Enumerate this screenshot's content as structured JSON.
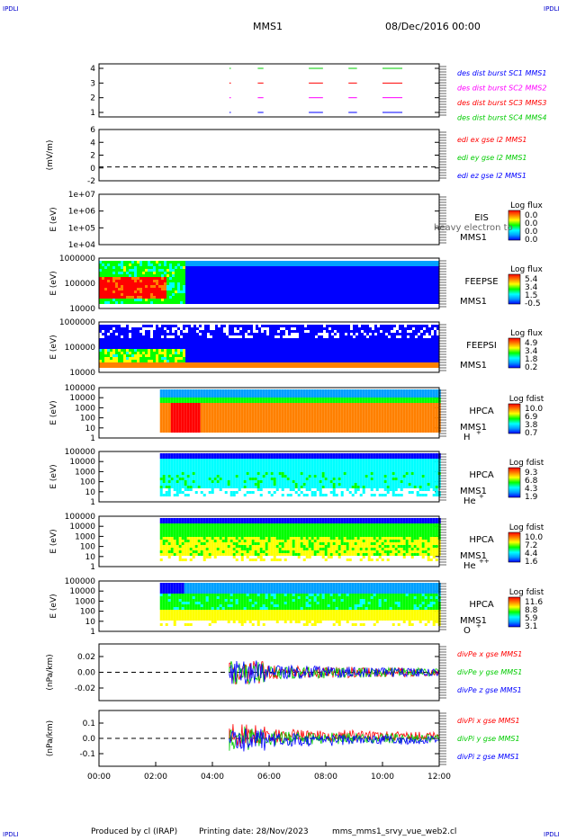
{
  "header": {
    "corner_label": "IPDLI",
    "spacecraft": "MMS1",
    "date": "08/Dec/2016 00:00"
  },
  "footer": {
    "producer": "Produced by cl (IRAP)",
    "printing": "Printing date: 28/Nov/2023",
    "file": "mms_mms1_srvy_vue_web2.cl"
  },
  "colors": {
    "blue": "#0000ff",
    "magenta": "#ff00ff",
    "red": "#ff0000",
    "green": "#00cc00",
    "bar_gradient": [
      "#0000ff",
      "#00a0ff",
      "#00ffff",
      "#00ff00",
      "#ffff00",
      "#ff8000",
      "#ff0000"
    ]
  },
  "chart_data": {
    "type": "heatmap",
    "x_ticks": [
      "00:00",
      "02:00",
      "04:00",
      "06:00",
      "08:00",
      "10:00",
      "12:00"
    ],
    "xlim_hours": [
      0,
      12
    ],
    "panels": [
      {
        "id": "p1",
        "kind": "timeline",
        "yticks": [
          "4",
          "3",
          "2",
          "1"
        ],
        "legend": [
          {
            "text": "des dist burst SC1 MMS1",
            "color": "#0000ff"
          },
          {
            "text": "des dist burst SC2 MMS2",
            "color": "#ff00ff"
          },
          {
            "text": "des dist burst SC3 MMS3",
            "color": "#ff0000"
          },
          {
            "text": "des dist burst SC4 MMS4",
            "color": "#00cc00"
          }
        ],
        "intervals_hours": [
          [
            5.6,
            5.8
          ],
          [
            7.4,
            7.9
          ],
          [
            8.8,
            9.1
          ],
          [
            10.0,
            10.7
          ]
        ]
      },
      {
        "id": "p2",
        "kind": "line",
        "ylabel": "(mV/m)",
        "yticks": [
          "6",
          "4",
          "2",
          "0",
          "-2"
        ],
        "ylim": [
          -2,
          6
        ],
        "legend": [
          {
            "text": "edi ex gse l2 MMS1",
            "color": "#ff0000"
          },
          {
            "text": "edi ey gse l2 MMS1",
            "color": "#00cc00"
          },
          {
            "text": "edi ez gse l2 MMS1",
            "color": "#0000ff"
          }
        ]
      },
      {
        "id": "p3",
        "kind": "spectrogram",
        "ylabel": "E (eV)",
        "yticks": [
          "1e+07",
          "1e+06",
          "1e+05",
          "1e+04"
        ],
        "instrument": "EIS",
        "sc": "MMS1",
        "overlay": "heavy electron to",
        "bar_title": "Log flux",
        "bar_values": [
          "0.0",
          "0.0",
          "0.0",
          "0.0"
        ]
      },
      {
        "id": "p4",
        "kind": "spectrogram",
        "ylabel": "E (eV)",
        "yticks": [
          "1000000",
          "100000",
          "10000"
        ],
        "instrument": "FEEPSE",
        "sc": "MMS1",
        "bar_title": "Log flux",
        "bar_values": [
          "5.4",
          "3.4",
          "1.5",
          "-0.5"
        ]
      },
      {
        "id": "p5",
        "kind": "spectrogram",
        "ylabel": "E (eV)",
        "yticks": [
          "1000000",
          "100000",
          "10000"
        ],
        "instrument": "FEEPSI",
        "sc": "MMS1",
        "bar_title": "Log flux",
        "bar_values": [
          "4.9",
          "3.4",
          "1.8",
          "0.2"
        ]
      },
      {
        "id": "p6",
        "kind": "spectrogram",
        "ylabel": "E (eV)",
        "yticks": [
          "100000",
          "10000",
          "1000",
          "100",
          "10",
          "1"
        ],
        "instrument": "HPCA",
        "sc": "MMS1",
        "species": "H",
        "charge": "+",
        "bar_title": "Log fdist",
        "bar_values": [
          "10.0",
          "6.9",
          "3.8",
          "0.7"
        ]
      },
      {
        "id": "p7",
        "kind": "spectrogram",
        "ylabel": "E (eV)",
        "yticks": [
          "100000",
          "10000",
          "1000",
          "100",
          "10",
          "1"
        ],
        "instrument": "HPCA",
        "sc": "MMS1",
        "species": "He",
        "charge": "+",
        "bar_title": "Log fdist",
        "bar_values": [
          "9.3",
          "6.8",
          "4.3",
          "1.9"
        ]
      },
      {
        "id": "p8",
        "kind": "spectrogram",
        "ylabel": "E (eV)",
        "yticks": [
          "100000",
          "10000",
          "1000",
          "100",
          "10",
          "1"
        ],
        "instrument": "HPCA",
        "sc": "MMS1",
        "species": "He",
        "charge": "++",
        "bar_title": "Log fdist",
        "bar_values": [
          "10.0",
          "7.2",
          "4.4",
          "1.6"
        ]
      },
      {
        "id": "p9",
        "kind": "spectrogram",
        "ylabel": "E (eV)",
        "yticks": [
          "100000",
          "10000",
          "1000",
          "100",
          "10",
          "1"
        ],
        "instrument": "HPCA",
        "sc": "MMS1",
        "species": "O",
        "charge": "+",
        "bar_title": "Log fdist",
        "bar_values": [
          "11.6",
          "8.8",
          "5.9",
          "3.1"
        ]
      },
      {
        "id": "p10",
        "kind": "line",
        "ylabel": "(nPa/km)",
        "yticks": [
          "0.02",
          "0.00",
          "-0.02"
        ],
        "ylim": [
          -0.03,
          0.03
        ],
        "legend": [
          {
            "text": "divPe x gse MMS1",
            "color": "#ff0000"
          },
          {
            "text": "divPe y gse MMS1",
            "color": "#00cc00"
          },
          {
            "text": "divPe z gse MMS1",
            "color": "#0000ff"
          }
        ]
      },
      {
        "id": "p11",
        "kind": "line",
        "ylabel": "(nPa/km)",
        "yticks": [
          "0.1",
          "0.0",
          "-0.1"
        ],
        "ylim": [
          -0.15,
          0.15
        ],
        "legend": [
          {
            "text": "divPi x gse MMS1",
            "color": "#ff0000"
          },
          {
            "text": "divPi y gse MMS1",
            "color": "#00cc00"
          },
          {
            "text": "divPi z gse MMS1",
            "color": "#0000ff"
          }
        ]
      }
    ]
  }
}
